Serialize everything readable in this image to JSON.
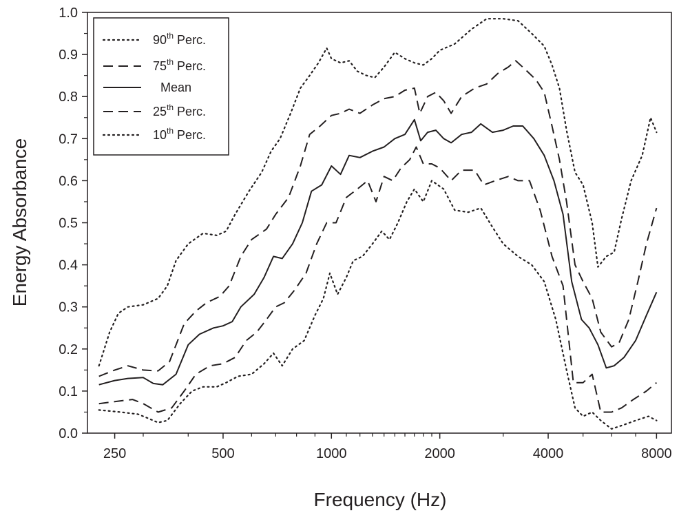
{
  "chart_data": {
    "type": "line",
    "xlabel": "Frequency (Hz)",
    "ylabel": "Energy Absorbance",
    "x_scale": "log",
    "xlim": [
      210,
      8800
    ],
    "ylim": [
      0,
      1.0
    ],
    "x_ticks": [
      250,
      500,
      1000,
      2000,
      4000,
      8000
    ],
    "x_tick_labels": [
      "250",
      "500",
      "1000",
      "2000",
      "4000",
      "8000"
    ],
    "y_ticks": [
      0,
      0.1,
      0.2,
      0.3,
      0.4,
      0.5,
      0.6,
      0.7,
      0.8,
      0.9,
      1.0
    ],
    "y_tick_labels": [
      "0.0",
      "0.1",
      "0.2",
      "0.3",
      "0.4",
      "0.5",
      "0.6",
      "0.7",
      "0.8",
      "0.9",
      "1.0"
    ],
    "grid": false,
    "legend_position": "top-left",
    "line_color": "#231f20",
    "series": [
      {
        "name": "90th Perc.",
        "label_base": "90",
        "label_sup": "th",
        "label_rest": " Perc.",
        "style": "dotted",
        "points": [
          [
            226,
            0.16
          ],
          [
            242,
            0.24
          ],
          [
            256,
            0.285
          ],
          [
            272,
            0.3
          ],
          [
            300,
            0.305
          ],
          [
            330,
            0.32
          ],
          [
            350,
            0.35
          ],
          [
            370,
            0.41
          ],
          [
            400,
            0.45
          ],
          [
            440,
            0.475
          ],
          [
            480,
            0.47
          ],
          [
            510,
            0.48
          ],
          [
            540,
            0.52
          ],
          [
            590,
            0.575
          ],
          [
            640,
            0.62
          ],
          [
            680,
            0.67
          ],
          [
            720,
            0.7
          ],
          [
            770,
            0.76
          ],
          [
            820,
            0.82
          ],
          [
            870,
            0.85
          ],
          [
            920,
            0.88
          ],
          [
            970,
            0.915
          ],
          [
            1000,
            0.89
          ],
          [
            1060,
            0.88
          ],
          [
            1120,
            0.885
          ],
          [
            1180,
            0.86
          ],
          [
            1250,
            0.85
          ],
          [
            1320,
            0.845
          ],
          [
            1400,
            0.87
          ],
          [
            1500,
            0.905
          ],
          [
            1600,
            0.89
          ],
          [
            1700,
            0.88
          ],
          [
            1800,
            0.875
          ],
          [
            1900,
            0.89
          ],
          [
            2000,
            0.91
          ],
          [
            2200,
            0.925
          ],
          [
            2450,
            0.96
          ],
          [
            2700,
            0.985
          ],
          [
            3000,
            0.985
          ],
          [
            3300,
            0.98
          ],
          [
            3600,
            0.95
          ],
          [
            3900,
            0.92
          ],
          [
            4100,
            0.875
          ],
          [
            4300,
            0.82
          ],
          [
            4500,
            0.72
          ],
          [
            4750,
            0.62
          ],
          [
            5000,
            0.59
          ],
          [
            5300,
            0.5
          ],
          [
            5500,
            0.395
          ],
          [
            5800,
            0.42
          ],
          [
            6100,
            0.43
          ],
          [
            6400,
            0.51
          ],
          [
            6800,
            0.6
          ],
          [
            7300,
            0.66
          ],
          [
            7700,
            0.75
          ],
          [
            8000,
            0.715
          ]
        ]
      },
      {
        "name": "75th Perc.",
        "label_base": "75",
        "label_sup": "th",
        "label_rest": " Perc.",
        "style": "dashed",
        "points": [
          [
            226,
            0.135
          ],
          [
            250,
            0.15
          ],
          [
            272,
            0.16
          ],
          [
            300,
            0.15
          ],
          [
            330,
            0.148
          ],
          [
            355,
            0.17
          ],
          [
            390,
            0.26
          ],
          [
            420,
            0.29
          ],
          [
            450,
            0.31
          ],
          [
            490,
            0.325
          ],
          [
            520,
            0.35
          ],
          [
            560,
            0.42
          ],
          [
            600,
            0.46
          ],
          [
            660,
            0.485
          ],
          [
            700,
            0.52
          ],
          [
            760,
            0.56
          ],
          [
            820,
            0.635
          ],
          [
            870,
            0.71
          ],
          [
            930,
            0.73
          ],
          [
            1000,
            0.755
          ],
          [
            1060,
            0.76
          ],
          [
            1120,
            0.77
          ],
          [
            1200,
            0.76
          ],
          [
            1300,
            0.78
          ],
          [
            1400,
            0.795
          ],
          [
            1500,
            0.8
          ],
          [
            1600,
            0.815
          ],
          [
            1700,
            0.82
          ],
          [
            1760,
            0.76
          ],
          [
            1850,
            0.8
          ],
          [
            1950,
            0.81
          ],
          [
            2050,
            0.79
          ],
          [
            2150,
            0.76
          ],
          [
            2300,
            0.8
          ],
          [
            2500,
            0.82
          ],
          [
            2700,
            0.83
          ],
          [
            2900,
            0.855
          ],
          [
            3100,
            0.87
          ],
          [
            3250,
            0.885
          ],
          [
            3450,
            0.865
          ],
          [
            3700,
            0.84
          ],
          [
            3900,
            0.81
          ],
          [
            4100,
            0.73
          ],
          [
            4300,
            0.65
          ],
          [
            4500,
            0.55
          ],
          [
            4750,
            0.4
          ],
          [
            5000,
            0.36
          ],
          [
            5300,
            0.32
          ],
          [
            5600,
            0.24
          ],
          [
            6000,
            0.205
          ],
          [
            6300,
            0.215
          ],
          [
            6700,
            0.27
          ],
          [
            7100,
            0.36
          ],
          [
            7500,
            0.45
          ],
          [
            8000,
            0.535
          ]
        ]
      },
      {
        "name": "Mean",
        "label_base": "Mean",
        "label_sup": "",
        "label_rest": "",
        "style": "solid",
        "points": [
          [
            226,
            0.115
          ],
          [
            250,
            0.125
          ],
          [
            272,
            0.13
          ],
          [
            300,
            0.132
          ],
          [
            320,
            0.118
          ],
          [
            340,
            0.115
          ],
          [
            370,
            0.14
          ],
          [
            400,
            0.21
          ],
          [
            430,
            0.235
          ],
          [
            470,
            0.25
          ],
          [
            500,
            0.255
          ],
          [
            530,
            0.265
          ],
          [
            560,
            0.3
          ],
          [
            610,
            0.33
          ],
          [
            650,
            0.37
          ],
          [
            690,
            0.42
          ],
          [
            730,
            0.415
          ],
          [
            780,
            0.45
          ],
          [
            830,
            0.5
          ],
          [
            880,
            0.575
          ],
          [
            940,
            0.59
          ],
          [
            1000,
            0.635
          ],
          [
            1060,
            0.615
          ],
          [
            1120,
            0.66
          ],
          [
            1200,
            0.655
          ],
          [
            1300,
            0.67
          ],
          [
            1400,
            0.68
          ],
          [
            1500,
            0.7
          ],
          [
            1600,
            0.71
          ],
          [
            1700,
            0.745
          ],
          [
            1770,
            0.695
          ],
          [
            1850,
            0.715
          ],
          [
            1950,
            0.72
          ],
          [
            2050,
            0.7
          ],
          [
            2150,
            0.69
          ],
          [
            2300,
            0.71
          ],
          [
            2450,
            0.715
          ],
          [
            2600,
            0.735
          ],
          [
            2800,
            0.715
          ],
          [
            3000,
            0.72
          ],
          [
            3200,
            0.73
          ],
          [
            3400,
            0.73
          ],
          [
            3650,
            0.7
          ],
          [
            3900,
            0.66
          ],
          [
            4150,
            0.6
          ],
          [
            4400,
            0.52
          ],
          [
            4650,
            0.36
          ],
          [
            4950,
            0.27
          ],
          [
            5200,
            0.25
          ],
          [
            5500,
            0.21
          ],
          [
            5800,
            0.155
          ],
          [
            6100,
            0.16
          ],
          [
            6500,
            0.18
          ],
          [
            7000,
            0.22
          ],
          [
            7500,
            0.28
          ],
          [
            8000,
            0.335
          ]
        ]
      },
      {
        "name": "25th Perc.",
        "label_base": "25",
        "label_sup": "th",
        "label_rest": " Perc.",
        "style": "dashed",
        "points": [
          [
            226,
            0.07
          ],
          [
            250,
            0.075
          ],
          [
            280,
            0.08
          ],
          [
            300,
            0.07
          ],
          [
            330,
            0.05
          ],
          [
            360,
            0.06
          ],
          [
            390,
            0.1
          ],
          [
            420,
            0.14
          ],
          [
            460,
            0.16
          ],
          [
            500,
            0.165
          ],
          [
            540,
            0.18
          ],
          [
            580,
            0.22
          ],
          [
            620,
            0.24
          ],
          [
            660,
            0.27
          ],
          [
            700,
            0.3
          ],
          [
            740,
            0.31
          ],
          [
            790,
            0.34
          ],
          [
            850,
            0.38
          ],
          [
            910,
            0.45
          ],
          [
            970,
            0.5
          ],
          [
            1030,
            0.5
          ],
          [
            1100,
            0.56
          ],
          [
            1180,
            0.58
          ],
          [
            1260,
            0.6
          ],
          [
            1330,
            0.55
          ],
          [
            1400,
            0.61
          ],
          [
            1480,
            0.6
          ],
          [
            1560,
            0.63
          ],
          [
            1650,
            0.65
          ],
          [
            1720,
            0.68
          ],
          [
            1800,
            0.64
          ],
          [
            1900,
            0.64
          ],
          [
            2000,
            0.63
          ],
          [
            2150,
            0.6
          ],
          [
            2300,
            0.625
          ],
          [
            2500,
            0.625
          ],
          [
            2650,
            0.59
          ],
          [
            2850,
            0.6
          ],
          [
            3100,
            0.61
          ],
          [
            3300,
            0.6
          ],
          [
            3550,
            0.6
          ],
          [
            3800,
            0.53
          ],
          [
            4100,
            0.42
          ],
          [
            4400,
            0.35
          ],
          [
            4700,
            0.12
          ],
          [
            5000,
            0.12
          ],
          [
            5300,
            0.14
          ],
          [
            5600,
            0.05
          ],
          [
            6000,
            0.05
          ],
          [
            6400,
            0.06
          ],
          [
            6900,
            0.08
          ],
          [
            7500,
            0.1
          ],
          [
            8000,
            0.12
          ]
        ]
      },
      {
        "name": "10th Perc.",
        "label_base": "10",
        "label_sup": "th",
        "label_rest": " Perc.",
        "style": "dotted",
        "points": [
          [
            226,
            0.055
          ],
          [
            260,
            0.05
          ],
          [
            290,
            0.045
          ],
          [
            310,
            0.035
          ],
          [
            330,
            0.025
          ],
          [
            350,
            0.03
          ],
          [
            380,
            0.07
          ],
          [
            410,
            0.1
          ],
          [
            440,
            0.11
          ],
          [
            480,
            0.11
          ],
          [
            510,
            0.12
          ],
          [
            550,
            0.135
          ],
          [
            600,
            0.14
          ],
          [
            650,
            0.165
          ],
          [
            690,
            0.19
          ],
          [
            730,
            0.16
          ],
          [
            780,
            0.2
          ],
          [
            840,
            0.22
          ],
          [
            900,
            0.28
          ],
          [
            950,
            0.32
          ],
          [
            990,
            0.38
          ],
          [
            1040,
            0.33
          ],
          [
            1100,
            0.37
          ],
          [
            1150,
            0.41
          ],
          [
            1220,
            0.42
          ],
          [
            1300,
            0.45
          ],
          [
            1380,
            0.48
          ],
          [
            1450,
            0.46
          ],
          [
            1530,
            0.5
          ],
          [
            1620,
            0.55
          ],
          [
            1700,
            0.58
          ],
          [
            1800,
            0.55
          ],
          [
            1900,
            0.6
          ],
          [
            2050,
            0.58
          ],
          [
            2200,
            0.53
          ],
          [
            2400,
            0.525
          ],
          [
            2600,
            0.535
          ],
          [
            2800,
            0.49
          ],
          [
            3000,
            0.45
          ],
          [
            3300,
            0.42
          ],
          [
            3600,
            0.4
          ],
          [
            3900,
            0.36
          ],
          [
            4200,
            0.27
          ],
          [
            4500,
            0.15
          ],
          [
            4750,
            0.06
          ],
          [
            5000,
            0.04
          ],
          [
            5300,
            0.05
          ],
          [
            5600,
            0.03
          ],
          [
            6000,
            0.01
          ],
          [
            6500,
            0.02
          ],
          [
            7000,
            0.03
          ],
          [
            7600,
            0.04
          ],
          [
            8000,
            0.03
          ]
        ]
      }
    ]
  }
}
